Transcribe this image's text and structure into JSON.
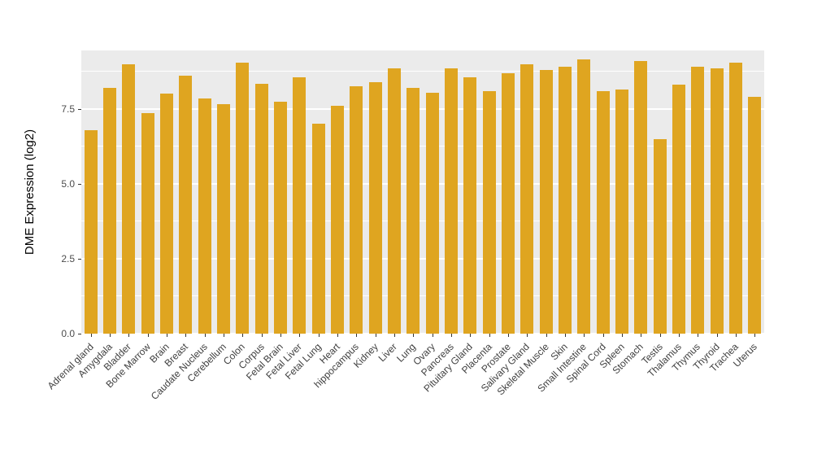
{
  "chart_data": {
    "type": "bar",
    "title": "",
    "xlabel": "",
    "ylabel": "DME Expression (log2)",
    "bar_color": "#DFA520",
    "panel_bg": "#EBEBEB",
    "gridline_color": "#FFFFFF",
    "ylim": [
      0,
      9.45
    ],
    "yticks": [
      0.0,
      2.5,
      5.0,
      7.5
    ],
    "ytick_labels": [
      "0.0",
      "2.5",
      "5.0",
      "7.5"
    ],
    "minor_gridlines": [
      1.25,
      3.75,
      6.25,
      8.75
    ],
    "grid": true,
    "legend": "none",
    "categories": [
      "Adrenal gland",
      "Amygdala",
      "Bladder",
      "Bone Marrow",
      "Brain",
      "Breast",
      "Caudate Nucleus",
      "Cerebellum",
      "Colon",
      "Corpus",
      "Fetal Brain",
      "Fetal Liver",
      "Fetal Lung",
      "Heart",
      "hippocampus",
      "Kidney",
      "Liver",
      "Lung",
      "Ovary",
      "Pancreas",
      "Pituitary Gland",
      "Placenta",
      "Prostate",
      "Salivary Gland",
      "Skeletal Muscle",
      "Skin",
      "Small Intestine",
      "Spinal Cord",
      "Spleen",
      "Stomach",
      "Testis",
      "Thalamus",
      "Thymus",
      "Thyroid",
      "Trachea",
      "Uterus"
    ],
    "values": [
      6.8,
      8.2,
      9.0,
      7.35,
      8.0,
      8.6,
      7.85,
      7.65,
      9.05,
      8.35,
      7.75,
      8.55,
      7.0,
      7.6,
      8.25,
      8.4,
      8.85,
      8.2,
      8.05,
      8.85,
      8.55,
      8.1,
      8.7,
      9.0,
      8.8,
      8.9,
      9.15,
      8.1,
      8.15,
      9.1,
      6.5,
      8.3,
      8.9,
      8.85,
      9.05,
      7.9
    ]
  }
}
